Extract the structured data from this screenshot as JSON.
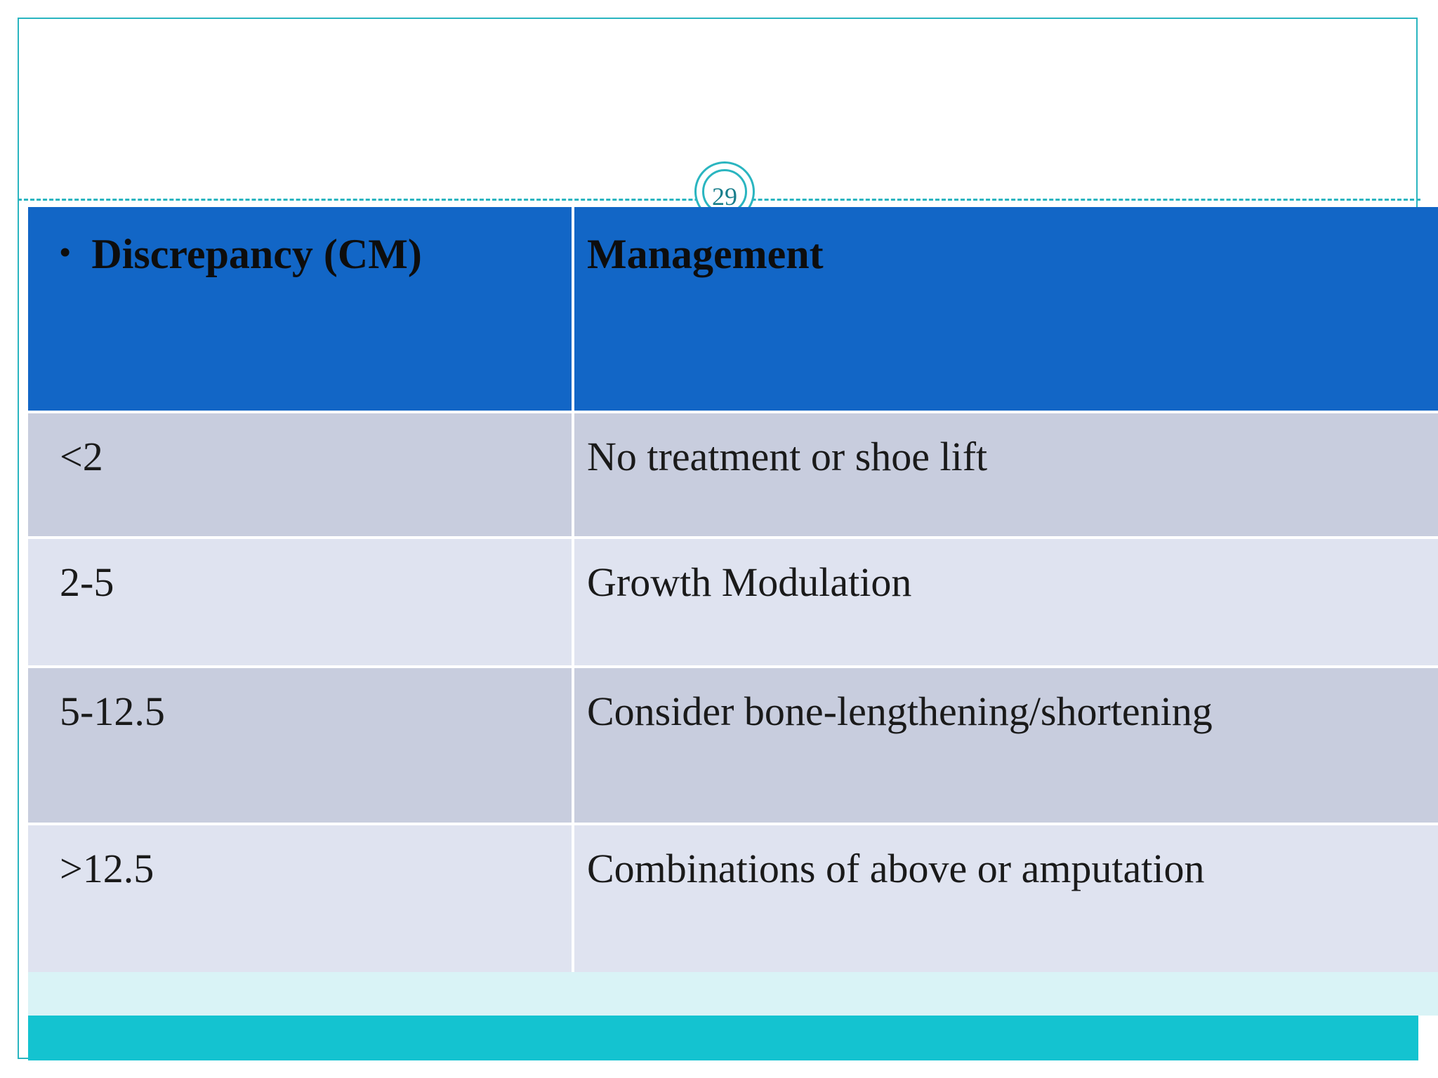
{
  "slide": {
    "page_number": "29",
    "accent_teal": "#2ab5c0",
    "header_blue": "#1266c6",
    "row_dark": "#c8cdde",
    "row_light": "#dfe3f0",
    "footer_strip": "#d9f3f6",
    "footer_bar": "#14c3d0"
  },
  "table": {
    "bullet": "•",
    "headers": [
      "Discrepancy  (CM)",
      "Management"
    ],
    "rows": [
      {
        "discrepancy": "<2",
        "management": "No treatment or shoe lift"
      },
      {
        "discrepancy": "2-5",
        "management": "Growth Modulation"
      },
      {
        "discrepancy": "5-12.5",
        "management": "Consider bone-lengthening/shortening"
      },
      {
        "discrepancy": ">12.5",
        "management": "Combinations of above or amputation"
      }
    ]
  }
}
